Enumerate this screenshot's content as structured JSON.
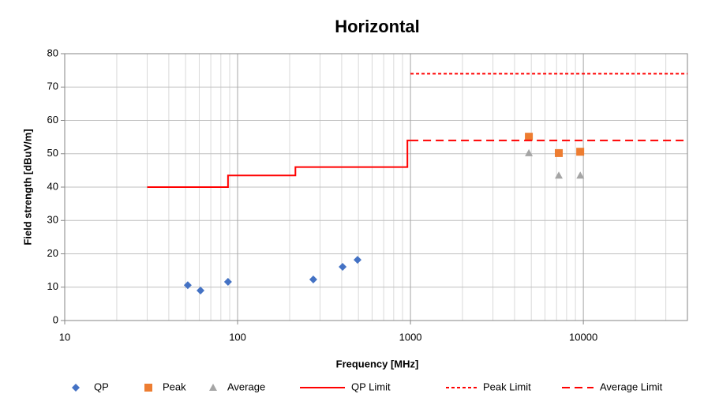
{
  "chart_data": {
    "type": "scatter",
    "title": "Horizontal",
    "x_label": "Frequency [MHz]",
    "y_label": "Field strength  [dBuV/m]",
    "xscale": "log",
    "xlim": [
      10,
      40000
    ],
    "xticks": [
      10,
      100,
      1000,
      10000
    ],
    "ylim": [
      0,
      80
    ],
    "yticks": [
      0,
      10,
      20,
      30,
      40,
      50,
      60,
      70,
      80
    ],
    "grid": true,
    "minor_grid": true,
    "legend": "bottom",
    "series": [
      {
        "name": "QP",
        "color": "#4472c4",
        "marker": "diamond",
        "x": [
          51.5,
          61,
          88,
          274,
          405,
          494
        ],
        "values": [
          10.6,
          9.0,
          11.6,
          12.3,
          16.1,
          18.2
        ]
      },
      {
        "name": "Peak",
        "color": "#ed7d31",
        "marker": "square",
        "x": [
          4840,
          7210,
          9590
        ],
        "values": [
          55.1,
          50.2,
          50.6
        ]
      },
      {
        "name": "Average",
        "color": "#a5a5a5",
        "marker": "triangle",
        "x": [
          4840,
          7210,
          9600
        ],
        "values": [
          50.2,
          43.5,
          43.5
        ]
      },
      {
        "name": "QP Limit",
        "color": "#ff0000",
        "line": "solid",
        "x": [
          30,
          88,
          88,
          216,
          216,
          960,
          960,
          1000
        ],
        "values": [
          40,
          40,
          43.5,
          43.5,
          46,
          46,
          54,
          54
        ]
      },
      {
        "name": "Peak Limit",
        "color": "#ff0000",
        "line": "dotted",
        "x": [
          1000,
          40000
        ],
        "values": [
          74,
          74
        ]
      },
      {
        "name": "Average Limit",
        "color": "#ff0000",
        "line": "dashed",
        "x": [
          1000,
          40000
        ],
        "values": [
          54,
          54
        ]
      }
    ]
  }
}
